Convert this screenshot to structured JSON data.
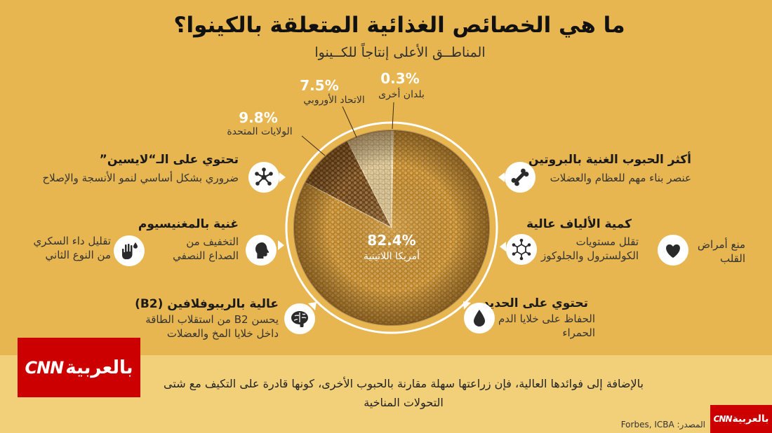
{
  "title": "ما هي الخصائص الغذائية المتعلقة بالكينوا؟",
  "chart_data": {
    "type": "pie",
    "title": "المناطــق الأعلى إنتاجاً للكــينوا",
    "unit": "%",
    "slices": [
      {
        "label": "بلدان أخرى",
        "value": 0.3,
        "color": "#EADBB4"
      },
      {
        "label": "أمريكا اللاتينية",
        "value": 82.4,
        "color": "#C68C2D"
      },
      {
        "label": "الولايات المتحدة",
        "value": 9.8,
        "color": "#6F4317"
      },
      {
        "label": "الاتحاد الأوروبي",
        "value": 7.5,
        "color": "#D7C395"
      }
    ]
  },
  "benefits": {
    "lysine": {
      "heading": "تحتوي على الـ“لايسين”",
      "lines": [
        "ضروري بشكل أساسي لنمو الأنسجة والإصلاح"
      ],
      "icon": "molecule-icon"
    },
    "magnesium": {
      "heading": "غنية بالمغنيسيوم",
      "effects": [
        {
          "lines": [
            "التخفيف من",
            "الصداع النصفي"
          ],
          "icon": "head-icon"
        },
        {
          "lines": [
            "تقليل داء السكري",
            "من النوع الثاني"
          ],
          "icon": "hand-icon"
        }
      ]
    },
    "riboflavin": {
      "heading": "عالية بالريبوفلافين (B2)",
      "lines": [
        "يحسن B2 من استقلاب الطاقة",
        "داخل خلايا المخ والعضلات"
      ],
      "icon": "brain-icon"
    },
    "protein": {
      "heading": "أكثر الحبوب الغنية بالبروتين",
      "lines": [
        "عنصر بناء مهم للعظام والعضلات"
      ],
      "icon": "bone-icon"
    },
    "fiber": {
      "heading": "كمية الألياف عالية",
      "effects": [
        {
          "lines": [
            "تقلل مستويات",
            "الكولسترول والجلوكوز"
          ],
          "icon": "fiber-molecule-icon"
        },
        {
          "lines": [
            "منع أمراض",
            "القلب"
          ],
          "icon": "heart-icon"
        }
      ]
    },
    "iron": {
      "heading": "تحتوي على الحديد",
      "lines": [
        "الحفاظ على خلايا الدم",
        "الحمراء"
      ],
      "icon": "drop-icon"
    }
  },
  "footer": {
    "note": [
      "بالإضافة إلى فوائدها العالية، فإن زراعتها سهلة مقارنة بالحبوب الأخرى، كونها قادرة على التكيف مع شتى",
      "التحولات المناخية"
    ],
    "source": "المصدر: Forbes, ICBA"
  },
  "logo": {
    "brand": "CNN",
    "name": "بالعربية",
    "color": "#CC0000"
  },
  "colors": {
    "background": "#E7B651",
    "footer_band": "#F2D07A"
  }
}
